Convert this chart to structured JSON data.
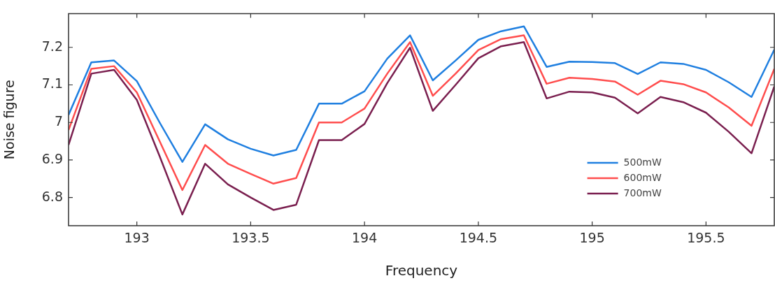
{
  "chart_data": {
    "type": "line",
    "xlabel": "Frequency",
    "ylabel": "Noise figure",
    "x": [
      192.7,
      192.8,
      192.9,
      193.0,
      193.1,
      193.2,
      193.3,
      193.4,
      193.5,
      193.6,
      193.7,
      193.8,
      193.9,
      194.0,
      194.1,
      194.2,
      194.3,
      194.4,
      194.5,
      194.6,
      194.7,
      194.8,
      194.9,
      195.0,
      195.1,
      195.2,
      195.3,
      195.4,
      195.5,
      195.6,
      195.7,
      195.8
    ],
    "series": [
      {
        "name": "500mW",
        "color": "#1f7fe0",
        "values": [
          7.02,
          7.16,
          7.165,
          7.11,
          7.0,
          6.895,
          6.995,
          6.955,
          6.93,
          6.912,
          6.927,
          7.05,
          7.05,
          7.083,
          7.17,
          7.232,
          7.112,
          7.165,
          7.22,
          7.243,
          7.256,
          7.148,
          7.162,
          7.161,
          7.158,
          7.129,
          7.16,
          7.156,
          7.14,
          7.107,
          7.068,
          7.194
        ]
      },
      {
        "name": "600mW",
        "color": "#ff4d4d",
        "values": [
          6.98,
          7.143,
          7.15,
          7.08,
          6.95,
          6.82,
          6.94,
          6.89,
          6.863,
          6.837,
          6.852,
          7.0,
          7.0,
          7.037,
          7.13,
          7.214,
          7.071,
          7.13,
          7.193,
          7.222,
          7.232,
          7.103,
          7.119,
          7.116,
          7.109,
          7.074,
          7.111,
          7.102,
          7.08,
          7.04,
          6.991,
          7.143
        ]
      },
      {
        "name": "700mW",
        "color": "#7a1f4f",
        "values": [
          6.94,
          7.13,
          7.14,
          7.06,
          6.91,
          6.755,
          6.89,
          6.835,
          6.8,
          6.767,
          6.781,
          6.953,
          6.953,
          6.996,
          7.105,
          7.199,
          7.031,
          7.1,
          7.171,
          7.203,
          7.214,
          7.064,
          7.082,
          7.08,
          7.066,
          7.024,
          7.068,
          7.054,
          7.026,
          6.975,
          6.918,
          7.096
        ]
      }
    ],
    "xlim": [
      192.7,
      195.8
    ],
    "xticks": [
      193,
      193.5,
      194,
      194.5,
      195,
      195.5
    ],
    "ylim": [
      6.725,
      7.29
    ],
    "yticks": [
      6.8,
      6.9,
      7,
      7.1,
      7.2
    ],
    "grid": false,
    "legend": "bottom right",
    "marker": "none",
    "line_style": "solid"
  }
}
